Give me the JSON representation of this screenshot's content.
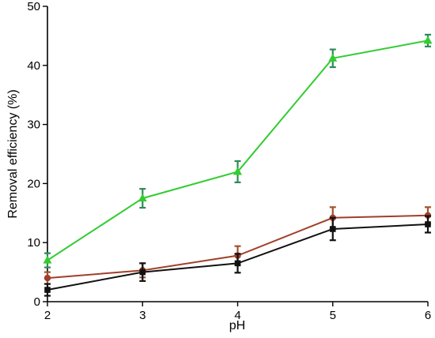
{
  "chart_data": {
    "type": "line",
    "title": "",
    "xlabel": "pH",
    "ylabel": "Removal efficiency (%)",
    "xlim": [
      2,
      6
    ],
    "ylim": [
      0,
      50
    ],
    "x_ticks": [
      "2",
      "3",
      "4",
      "5",
      "6"
    ],
    "y_ticks": [
      "0",
      "10",
      "20",
      "30",
      "40",
      "50"
    ],
    "grid": false,
    "legend": "none",
    "x": [
      2,
      3,
      4,
      5,
      6
    ],
    "series": [
      {
        "marker": "triangle",
        "color": "#33cc33",
        "error_color": "#2e8b57",
        "values": [
          7.0,
          17.5,
          22.0,
          41.2,
          44.2
        ],
        "errors": [
          1.2,
          1.6,
          1.8,
          1.5,
          1.0
        ]
      },
      {
        "marker": "circle",
        "color": "#a0402a",
        "error_color": "#a0522d",
        "values": [
          4.0,
          5.3,
          7.8,
          14.2,
          14.6
        ],
        "errors": [
          1.0,
          1.2,
          1.6,
          1.8,
          1.4
        ]
      },
      {
        "marker": "square",
        "color": "#111111",
        "error_color": "#111111",
        "values": [
          2.0,
          5.0,
          6.5,
          12.3,
          13.1
        ],
        "errors": [
          1.0,
          1.5,
          1.6,
          1.9,
          1.4
        ]
      }
    ]
  }
}
